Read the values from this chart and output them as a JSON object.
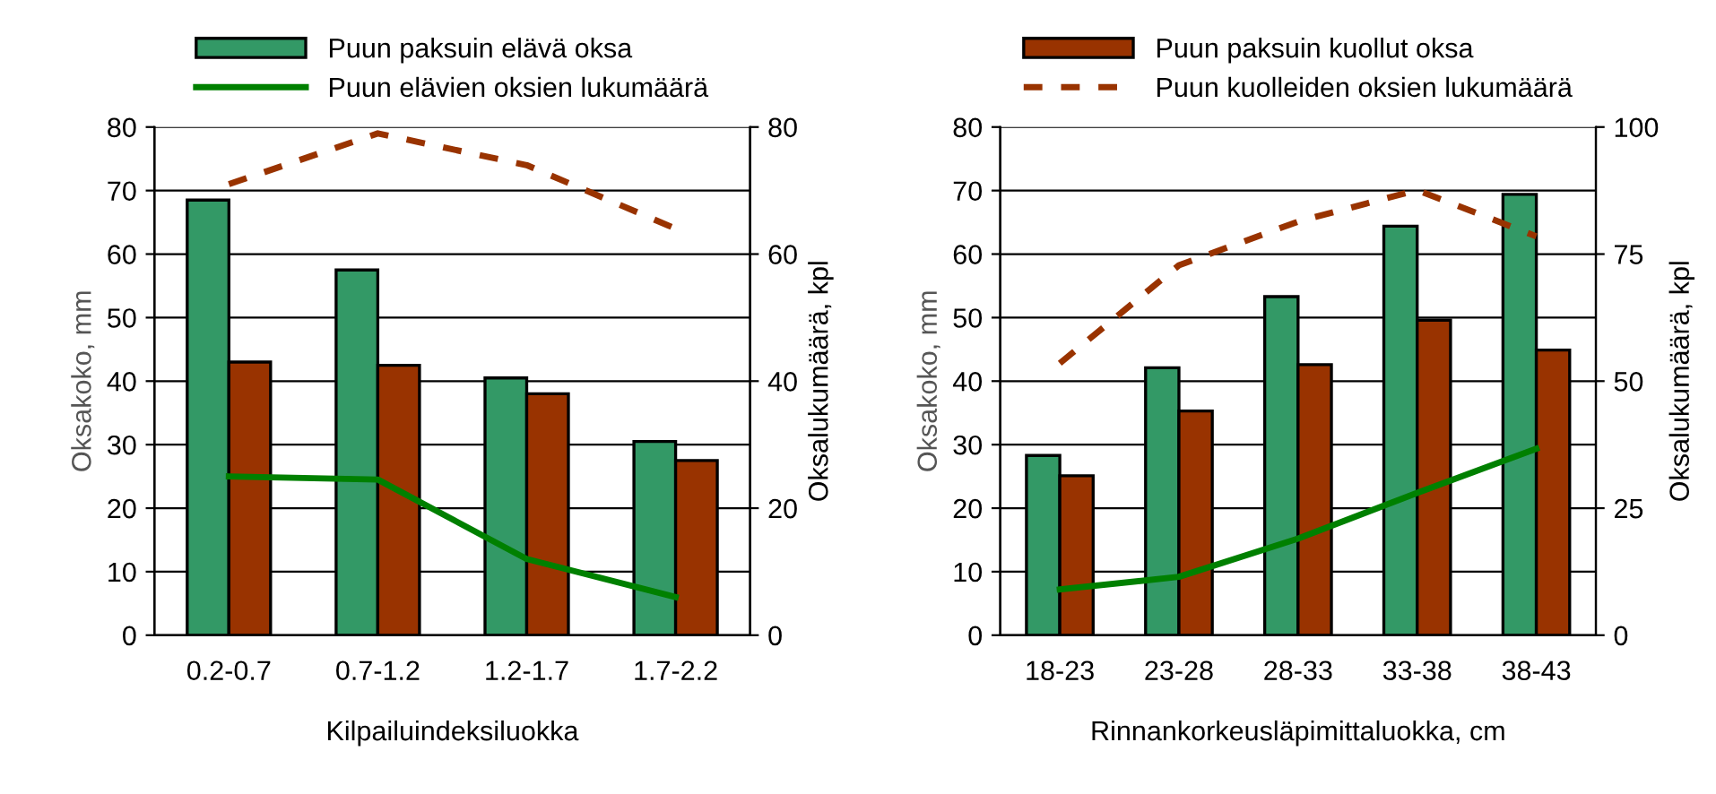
{
  "chart_data": [
    {
      "type": "bar",
      "xlabel": "Kilpailuindeksiluokka",
      "ylabel": "Oksakoko, mm",
      "y2label": "Oksalukumäärä, kpl",
      "categories": [
        "0.2-0.7",
        "0.7-1.2",
        "1.2-1.7",
        "1.7-2.2"
      ],
      "ylim": [
        0,
        80
      ],
      "yticks": [
        0,
        10,
        20,
        30,
        40,
        50,
        60,
        70,
        80
      ],
      "y2lim": [
        0,
        80
      ],
      "y2ticks": [
        0,
        20,
        40,
        60,
        80
      ],
      "grid": "y",
      "legend": "top",
      "marker": "none",
      "series": [
        {
          "name": "Puun paksuin elävä oksa",
          "color": "#339966",
          "values": [
            68.5,
            57.5,
            40.5,
            30.5
          ]
        },
        {
          "color": "#993300",
          "values": [
            43,
            42.5,
            38,
            27.5
          ]
        },
        {
          "name": "Puun elävien oksien lukumäärä",
          "type": "line",
          "axis": "y2",
          "line_style": "solid",
          "color": "#008000",
          "values": [
            25,
            24.5,
            12,
            6
          ]
        },
        {
          "type": "line",
          "axis": "y2",
          "line_style": "dashed",
          "color": "#993300",
          "values": [
            71,
            79,
            74,
            64
          ]
        }
      ]
    },
    {
      "type": "bar",
      "xlabel": "Rinnankorkeusläpimittaluokka, cm",
      "ylabel": "Oksakoko, mm",
      "y2label": "Oksalukumäärä, kpl",
      "categories": [
        "18-23",
        "23-28",
        "28-33",
        "33-38",
        "38-43"
      ],
      "ylim": [
        0,
        80
      ],
      "yticks": [
        0,
        10,
        20,
        30,
        40,
        50,
        60,
        70,
        80
      ],
      "y2lim": [
        0,
        100
      ],
      "y2ticks": [
        0,
        25,
        50,
        75,
        100
      ],
      "grid": "y",
      "legend": "top",
      "marker": "none",
      "series": [
        {
          "color": "#339966",
          "values": [
            28.3,
            42.1,
            53.3,
            64.4,
            69.4
          ]
        },
        {
          "name": "Puun paksuin kuollut oksa",
          "color": "#993300",
          "values": [
            25.1,
            35.3,
            42.6,
            49.6,
            44.9
          ]
        },
        {
          "type": "line",
          "axis": "y2",
          "line_style": "solid",
          "color": "#008000",
          "values": [
            9,
            11.5,
            19,
            28,
            36.7
          ]
        },
        {
          "name": "Puun kuolleiden oksien lukumäärä",
          "type": "line",
          "axis": "y2",
          "line_style": "dashed",
          "color": "#993300",
          "values": [
            53.5,
            72.8,
            81.4,
            87.6,
            78.5
          ]
        }
      ]
    }
  ]
}
